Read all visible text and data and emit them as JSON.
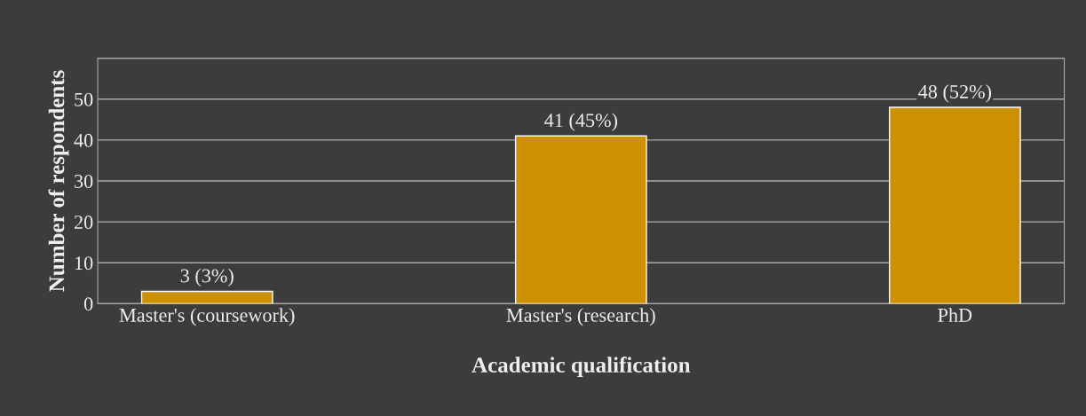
{
  "chart_data": {
    "type": "bar",
    "xlabel": "Academic qualification",
    "ylabel": "Number of respondents",
    "categories": [
      "Master's (coursework)",
      "Master's (research)",
      "PhD"
    ],
    "values": [
      3,
      41,
      48
    ],
    "color": "#cc9000",
    "value_labels": [
      "3 (3%)",
      "41 (45%)",
      "48 (52%)"
    ],
    "ylim": [
      0,
      60
    ],
    "yticks": [
      0,
      10,
      20,
      30,
      40,
      50,
      {
        "value": 60,
        "label": null
      }
    ],
    "grid": "y"
  }
}
